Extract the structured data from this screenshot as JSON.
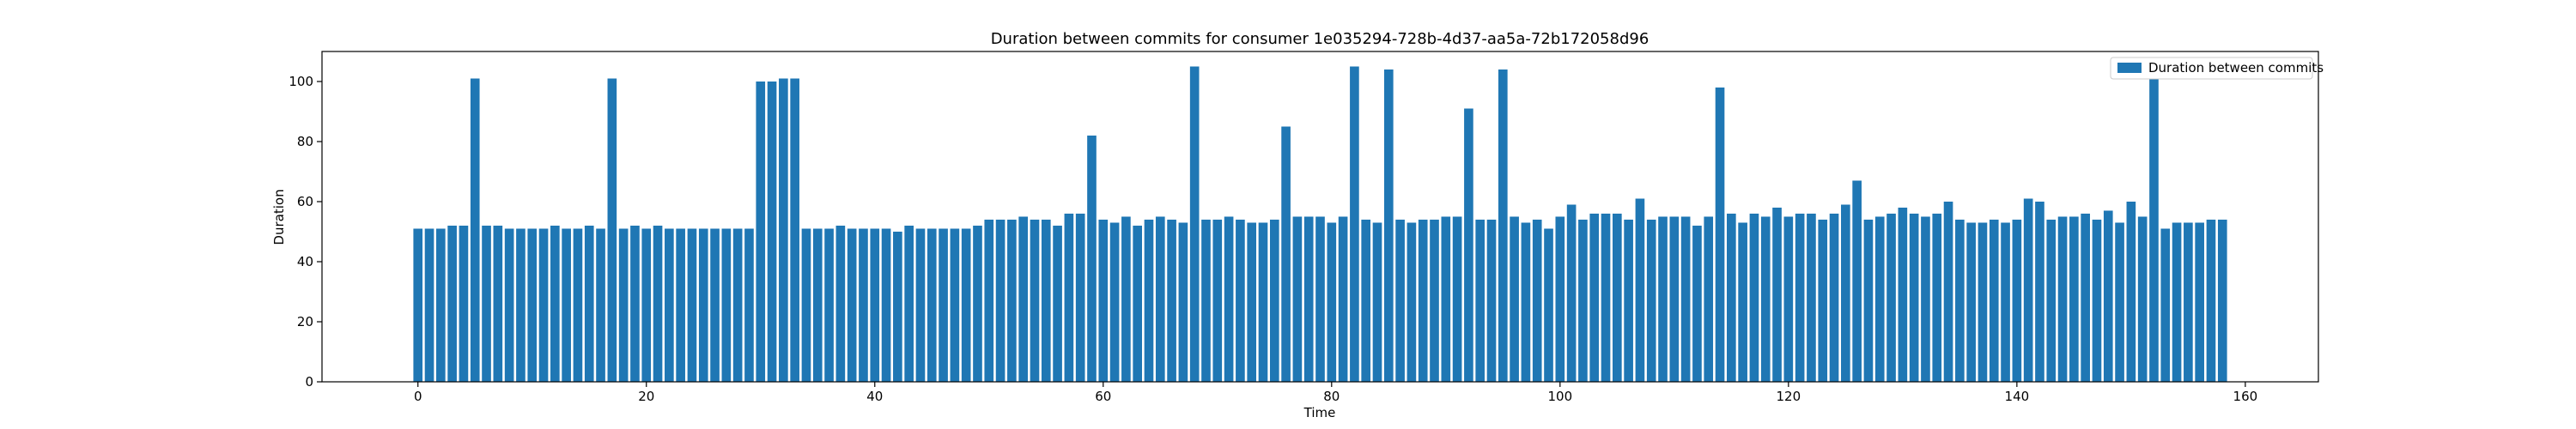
{
  "chart_data": {
    "type": "bar",
    "title": "Duration between commits for consumer 1e035294-728b-4d37-aa5a-72b172058d96",
    "xlabel": "Time",
    "ylabel": "Duration",
    "xlim": [
      -8.4,
      166.4
    ],
    "ylim": [
      0,
      110
    ],
    "xticks": [
      0,
      20,
      40,
      60,
      80,
      100,
      120,
      140,
      160
    ],
    "yticks": [
      0,
      20,
      40,
      60,
      80,
      100
    ],
    "legend_placement": "top-right",
    "grid": false,
    "color": "#1f77b4",
    "series": [
      {
        "name": "Duration between commits",
        "x": [
          0,
          1,
          2,
          3,
          4,
          5,
          6,
          7,
          8,
          9,
          10,
          11,
          12,
          13,
          14,
          15,
          16,
          17,
          18,
          19,
          20,
          21,
          22,
          23,
          24,
          25,
          26,
          27,
          28,
          29,
          30,
          31,
          32,
          33,
          34,
          35,
          36,
          37,
          38,
          39,
          40,
          41,
          42,
          43,
          44,
          45,
          46,
          47,
          48,
          49,
          50,
          51,
          52,
          53,
          54,
          55,
          56,
          57,
          58,
          59,
          60,
          61,
          62,
          63,
          64,
          65,
          66,
          67,
          68,
          69,
          70,
          71,
          72,
          73,
          74,
          75,
          76,
          77,
          78,
          79,
          80,
          81,
          82,
          83,
          84,
          85,
          86,
          87,
          88,
          89,
          90,
          91,
          92,
          93,
          94,
          95,
          96,
          97,
          98,
          99,
          100,
          101,
          102,
          103,
          104,
          105,
          106,
          107,
          108,
          109,
          110,
          111,
          112,
          113,
          114,
          115,
          116,
          117,
          118,
          119,
          120,
          121,
          122,
          123,
          124,
          125,
          126,
          127,
          128,
          129,
          130,
          131,
          132,
          133,
          134,
          135,
          136,
          137,
          138,
          139,
          140,
          141,
          142,
          143,
          144,
          145,
          146,
          147,
          148,
          149,
          150,
          151,
          152,
          153,
          154,
          155,
          156,
          157,
          158
        ],
        "values": [
          51,
          51,
          51,
          52,
          52,
          101,
          52,
          52,
          51,
          51,
          51,
          51,
          52,
          51,
          51,
          52,
          51,
          101,
          51,
          52,
          51,
          52,
          51,
          51,
          51,
          51,
          51,
          51,
          51,
          51,
          100,
          100,
          101,
          101,
          51,
          51,
          51,
          52,
          51,
          51,
          51,
          51,
          50,
          52,
          51,
          51,
          51,
          51,
          51,
          52,
          54,
          54,
          54,
          55,
          54,
          54,
          52,
          56,
          56,
          82,
          54,
          53,
          55,
          52,
          54,
          55,
          54,
          53,
          105,
          54,
          54,
          55,
          54,
          53,
          53,
          54,
          85,
          55,
          55,
          55,
          53,
          55,
          105,
          54,
          53,
          104,
          54,
          53,
          54,
          54,
          55,
          55,
          91,
          54,
          54,
          104,
          55,
          53,
          54,
          51,
          55,
          59,
          54,
          56,
          56,
          56,
          54,
          61,
          54,
          55,
          55,
          55,
          52,
          55,
          98,
          56,
          53,
          56,
          55,
          58,
          55,
          56,
          56,
          54,
          56,
          59,
          67,
          54,
          55,
          56,
          58,
          56,
          55,
          56,
          60,
          54,
          53,
          53,
          54,
          53,
          54,
          61,
          60,
          54,
          55,
          55,
          56,
          54,
          57,
          53,
          60,
          55,
          101,
          51,
          53,
          53,
          53,
          54,
          54
        ]
      }
    ]
  }
}
